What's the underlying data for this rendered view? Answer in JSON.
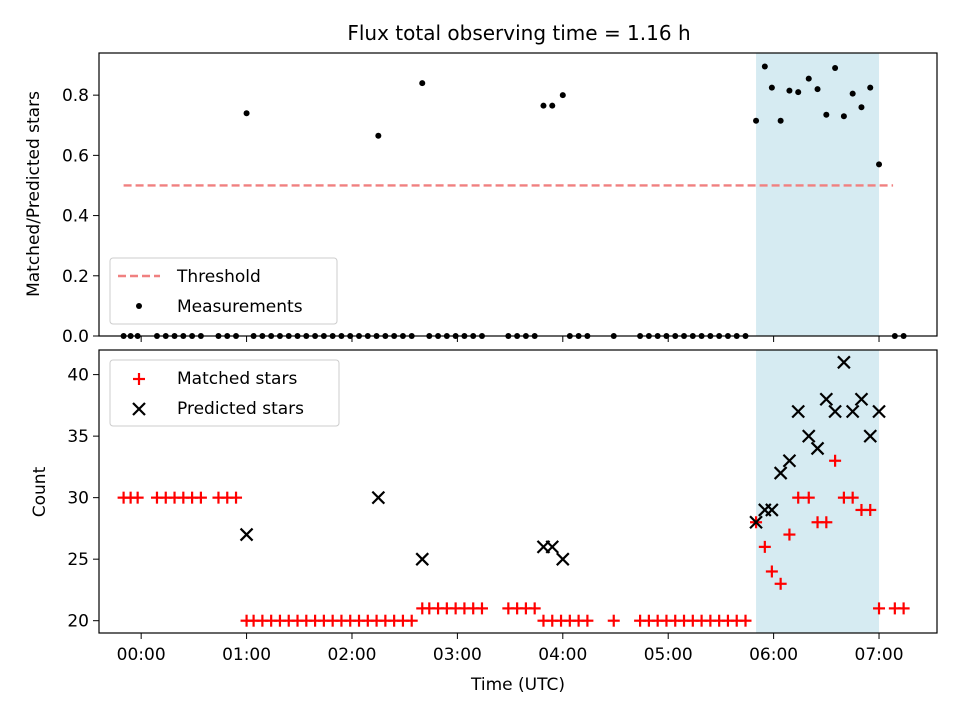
{
  "figure": {
    "title": "Flux total observing time = 1.16 h"
  },
  "chart_data": [
    {
      "type": "scatter",
      "panel": "top",
      "ylabel": "Matched/Predicted stars",
      "xlim_hours": [
        -0.4,
        7.55
      ],
      "ylim": [
        0,
        0.94
      ],
      "yticks": [
        0.0,
        0.2,
        0.4,
        0.6,
        0.8
      ],
      "ytick_labels": [
        "0.0",
        "0.2",
        "0.4",
        "0.6",
        "0.8"
      ],
      "grid": false,
      "legend": {
        "placement": "lower-left",
        "entries": [
          {
            "label": "Threshold",
            "marker": "dashed-line",
            "color": "#f08080"
          },
          {
            "label": "Measurements",
            "marker": "dot",
            "color": "#000000"
          }
        ]
      },
      "highlight": {
        "x_start": "05:50",
        "x_end": "07:00",
        "color": "#add8e6"
      },
      "threshold": {
        "value": 0.5,
        "x_start": "23:50",
        "x_end": "07:08",
        "color": "#f08080"
      },
      "series": [
        {
          "name": "Measurements",
          "marker": "dot",
          "color": "#000000",
          "points": [
            [
              "23:50",
              0
            ],
            [
              "23:54",
              0
            ],
            [
              "23:58",
              0
            ],
            [
              "00:09",
              0
            ],
            [
              "00:14",
              0
            ],
            [
              "00:19",
              0
            ],
            [
              "00:24",
              0
            ],
            [
              "00:29",
              0
            ],
            [
              "00:34",
              0
            ],
            [
              "00:44",
              0
            ],
            [
              "00:49",
              0
            ],
            [
              "00:54",
              0
            ],
            [
              "01:00",
              0.74
            ],
            [
              "01:04",
              0
            ],
            [
              "01:09",
              0
            ],
            [
              "01:14",
              0
            ],
            [
              "01:19",
              0
            ],
            [
              "01:24",
              0
            ],
            [
              "01:29",
              0
            ],
            [
              "01:34",
              0
            ],
            [
              "01:39",
              0
            ],
            [
              "01:44",
              0
            ],
            [
              "01:49",
              0
            ],
            [
              "01:54",
              0
            ],
            [
              "01:59",
              0
            ],
            [
              "02:04",
              0
            ],
            [
              "02:09",
              0
            ],
            [
              "02:14",
              0
            ],
            [
              "02:15",
              0.665
            ],
            [
              "02:19",
              0
            ],
            [
              "02:24",
              0
            ],
            [
              "02:29",
              0
            ],
            [
              "02:34",
              0
            ],
            [
              "02:40",
              0.84
            ],
            [
              "02:44",
              0
            ],
            [
              "02:49",
              0
            ],
            [
              "02:54",
              0
            ],
            [
              "02:59",
              0
            ],
            [
              "03:04",
              0
            ],
            [
              "03:09",
              0
            ],
            [
              "03:14",
              0
            ],
            [
              "03:29",
              0
            ],
            [
              "03:34",
              0
            ],
            [
              "03:39",
              0
            ],
            [
              "03:44",
              0
            ],
            [
              "03:49",
              0.765
            ],
            [
              "03:54",
              0.765
            ],
            [
              "04:00",
              0.8
            ],
            [
              "04:04",
              0
            ],
            [
              "04:09",
              0
            ],
            [
              "04:14",
              0
            ],
            [
              "04:29",
              0
            ],
            [
              "04:44",
              0
            ],
            [
              "04:49",
              0
            ],
            [
              "04:54",
              0
            ],
            [
              "04:59",
              0
            ],
            [
              "05:04",
              0
            ],
            [
              "05:09",
              0
            ],
            [
              "05:14",
              0
            ],
            [
              "05:19",
              0
            ],
            [
              "05:24",
              0
            ],
            [
              "05:29",
              0
            ],
            [
              "05:34",
              0
            ],
            [
              "05:39",
              0
            ],
            [
              "05:44",
              0
            ],
            [
              "05:50",
              0.715
            ],
            [
              "05:55",
              0.895
            ],
            [
              "05:59",
              0.825
            ],
            [
              "06:04",
              0.715
            ],
            [
              "06:09",
              0.815
            ],
            [
              "06:14",
              0.81
            ],
            [
              "06:20",
              0.855
            ],
            [
              "06:25",
              0.82
            ],
            [
              "06:30",
              0.735
            ],
            [
              "06:35",
              0.89
            ],
            [
              "06:40",
              0.73
            ],
            [
              "06:45",
              0.805
            ],
            [
              "06:50",
              0.76
            ],
            [
              "06:55",
              0.825
            ],
            [
              "07:00",
              0.57
            ],
            [
              "07:09",
              0
            ],
            [
              "07:14",
              0
            ]
          ]
        }
      ]
    },
    {
      "type": "scatter",
      "panel": "bottom",
      "xlabel": "Time (UTC)",
      "ylabel": "Count",
      "xlim_hours": [
        -0.4,
        7.55
      ],
      "ylim": [
        19,
        42
      ],
      "yticks": [
        20,
        25,
        30,
        35,
        40
      ],
      "ytick_labels": [
        "20",
        "25",
        "30",
        "35",
        "40"
      ],
      "xticks_hours": [
        0,
        1,
        2,
        3,
        4,
        5,
        6,
        7
      ],
      "xtick_labels": [
        "00:00",
        "01:00",
        "02:00",
        "03:00",
        "04:00",
        "05:00",
        "06:00",
        "07:00"
      ],
      "grid": false,
      "legend": {
        "placement": "upper-left",
        "entries": [
          {
            "label": "Matched stars",
            "marker": "plus",
            "color": "#ff0000"
          },
          {
            "label": "Predicted stars",
            "marker": "x",
            "color": "#000000"
          }
        ]
      },
      "highlight": {
        "x_start": "05:50",
        "x_end": "07:00",
        "color": "#add8e6"
      },
      "series": [
        {
          "name": "Matched stars",
          "marker": "plus",
          "color": "#ff0000",
          "points": [
            [
              "23:50",
              30
            ],
            [
              "23:54",
              30
            ],
            [
              "23:58",
              30
            ],
            [
              "00:09",
              30
            ],
            [
              "00:14",
              30
            ],
            [
              "00:19",
              30
            ],
            [
              "00:24",
              30
            ],
            [
              "00:29",
              30
            ],
            [
              "00:34",
              30
            ],
            [
              "00:44",
              30
            ],
            [
              "00:49",
              30
            ],
            [
              "00:54",
              30
            ],
            [
              "01:00",
              20
            ],
            [
              "01:04",
              20
            ],
            [
              "01:09",
              20
            ],
            [
              "01:14",
              20
            ],
            [
              "01:19",
              20
            ],
            [
              "01:24",
              20
            ],
            [
              "01:29",
              20
            ],
            [
              "01:34",
              20
            ],
            [
              "01:39",
              20
            ],
            [
              "01:44",
              20
            ],
            [
              "01:49",
              20
            ],
            [
              "01:54",
              20
            ],
            [
              "01:59",
              20
            ],
            [
              "02:04",
              20
            ],
            [
              "02:09",
              20
            ],
            [
              "02:14",
              20
            ],
            [
              "02:19",
              20
            ],
            [
              "02:24",
              20
            ],
            [
              "02:29",
              20
            ],
            [
              "02:34",
              20
            ],
            [
              "02:40",
              21
            ],
            [
              "02:44",
              21
            ],
            [
              "02:49",
              21
            ],
            [
              "02:54",
              21
            ],
            [
              "02:59",
              21
            ],
            [
              "03:04",
              21
            ],
            [
              "03:09",
              21
            ],
            [
              "03:14",
              21
            ],
            [
              "03:29",
              21
            ],
            [
              "03:34",
              21
            ],
            [
              "03:39",
              21
            ],
            [
              "03:44",
              21
            ],
            [
              "03:49",
              20
            ],
            [
              "03:54",
              20
            ],
            [
              "03:59",
              20
            ],
            [
              "04:04",
              20
            ],
            [
              "04:09",
              20
            ],
            [
              "04:14",
              20
            ],
            [
              "04:29",
              20
            ],
            [
              "04:44",
              20
            ],
            [
              "04:49",
              20
            ],
            [
              "04:54",
              20
            ],
            [
              "04:59",
              20
            ],
            [
              "05:04",
              20
            ],
            [
              "05:09",
              20
            ],
            [
              "05:14",
              20
            ],
            [
              "05:19",
              20
            ],
            [
              "05:24",
              20
            ],
            [
              "05:29",
              20
            ],
            [
              "05:34",
              20
            ],
            [
              "05:39",
              20
            ],
            [
              "05:44",
              20
            ],
            [
              "05:50",
              28
            ],
            [
              "05:55",
              26
            ],
            [
              "05:59",
              24
            ],
            [
              "06:04",
              23
            ],
            [
              "06:09",
              27
            ],
            [
              "06:14",
              30
            ],
            [
              "06:20",
              30
            ],
            [
              "06:25",
              28
            ],
            [
              "06:30",
              28
            ],
            [
              "06:35",
              33
            ],
            [
              "06:40",
              30
            ],
            [
              "06:45",
              30
            ],
            [
              "06:50",
              29
            ],
            [
              "06:55",
              29
            ],
            [
              "07:00",
              21
            ],
            [
              "07:09",
              21
            ],
            [
              "07:14",
              21
            ]
          ]
        },
        {
          "name": "Predicted stars",
          "marker": "x",
          "color": "#000000",
          "points": [
            [
              "01:00",
              27
            ],
            [
              "02:15",
              30
            ],
            [
              "02:40",
              25
            ],
            [
              "03:49",
              26
            ],
            [
              "03:54",
              26
            ],
            [
              "04:00",
              25
            ],
            [
              "05:50",
              28
            ],
            [
              "05:55",
              29
            ],
            [
              "05:59",
              29
            ],
            [
              "06:04",
              32
            ],
            [
              "06:09",
              33
            ],
            [
              "06:14",
              37
            ],
            [
              "06:20",
              35
            ],
            [
              "06:25",
              34
            ],
            [
              "06:30",
              38
            ],
            [
              "06:35",
              37
            ],
            [
              "06:40",
              41
            ],
            [
              "06:45",
              37
            ],
            [
              "06:50",
              38
            ],
            [
              "06:55",
              35
            ],
            [
              "07:00",
              37
            ]
          ]
        }
      ]
    }
  ]
}
